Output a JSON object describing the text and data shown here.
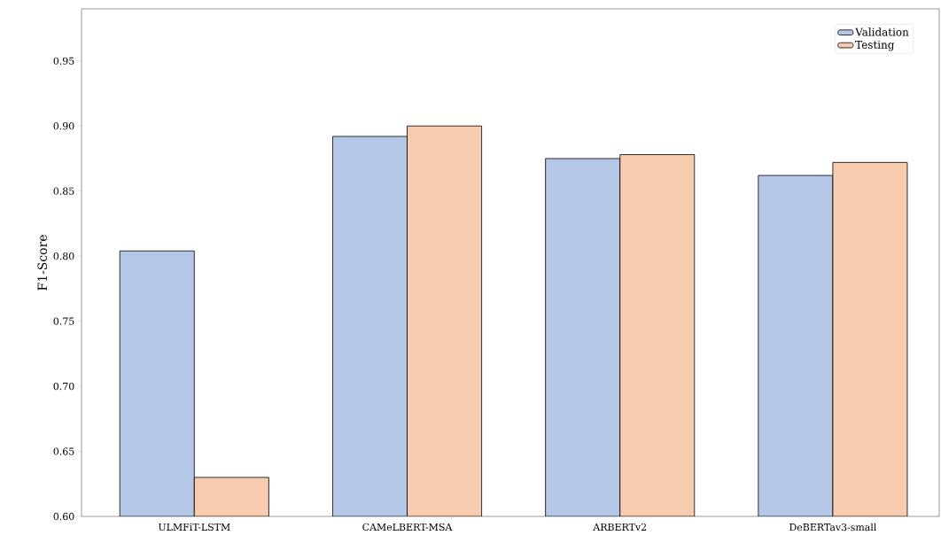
{
  "chart_data": {
    "type": "bar",
    "ylabel": "F1-Score",
    "categories": [
      "ULMFiT-LSTM",
      "CAMeLBERT-MSA",
      "ARBERTv2",
      "DeBERTav3-small"
    ],
    "series": [
      {
        "name": "Validation",
        "color": "#b4c7e7",
        "values": [
          0.804,
          0.892,
          0.875,
          0.862
        ]
      },
      {
        "name": "Testing",
        "color": "#f7cbad",
        "values": [
          0.63,
          0.9,
          0.878,
          0.872
        ]
      }
    ],
    "ylim": [
      0.6,
      0.99
    ],
    "yticks": [
      {
        "value": 0.6,
        "label": "0.60"
      },
      {
        "value": 0.65,
        "label": "0.65"
      },
      {
        "value": 0.7,
        "label": "0.70"
      },
      {
        "value": 0.75,
        "label": "0.75"
      },
      {
        "value": 0.8,
        "label": "0.80"
      },
      {
        "value": 0.85,
        "label": "0.85"
      },
      {
        "value": 0.9,
        "label": "0.90"
      },
      {
        "value": 0.95,
        "label": "0.95"
      }
    ],
    "grid": false,
    "legend": "top right"
  }
}
